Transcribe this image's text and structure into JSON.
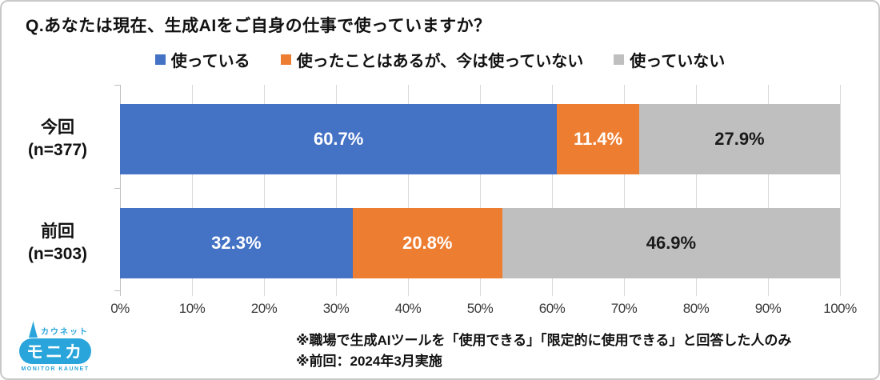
{
  "title": "Q.あなたは現在、生成AIをご自身の仕事で使っていますか？",
  "legend": [
    {
      "label": "使っている",
      "color": "#4472C4"
    },
    {
      "label": "使ったことはあるが、今は使っていない",
      "color": "#ED7D31"
    },
    {
      "label": "使っていない",
      "color": "#BFBFBF"
    }
  ],
  "chart_data": {
    "type": "bar",
    "orientation": "horizontal_stacked",
    "title": "Q.あなたは現在、生成AIをご自身の仕事で使っていますか？",
    "categories": [
      {
        "line1": "今回",
        "line2": "(n=377)"
      },
      {
        "line1": "前回",
        "line2": "(n=303)"
      }
    ],
    "series": [
      {
        "name": "使っている",
        "color": "#4472C4",
        "label_color": "#ffffff",
        "values": [
          60.7,
          32.3
        ]
      },
      {
        "name": "使ったことはあるが、今は使っていない",
        "color": "#ED7D31",
        "label_color": "#ffffff",
        "values": [
          11.4,
          20.8
        ]
      },
      {
        "name": "使っていない",
        "color": "#BFBFBF",
        "label_color": "#1a1a1a",
        "values": [
          27.9,
          46.9
        ]
      }
    ],
    "xlim": [
      0,
      100
    ],
    "x_ticks": [
      "0%",
      "10%",
      "20%",
      "30%",
      "40%",
      "50%",
      "60%",
      "70%",
      "80%",
      "90%",
      "100%"
    ],
    "grid": true,
    "legend_position": "top",
    "value_suffix": "%"
  },
  "footnotes": [
    "※職場で生成AIツールを「使用できる」「限定的に使用できる」と回答した人のみ",
    "※前回：2024年3月実施"
  ],
  "logo": {
    "top_text": "カウネット",
    "main_text": "モニカ",
    "bottom_text": "MONITOR KAUNET",
    "color": "#29A5DB"
  }
}
